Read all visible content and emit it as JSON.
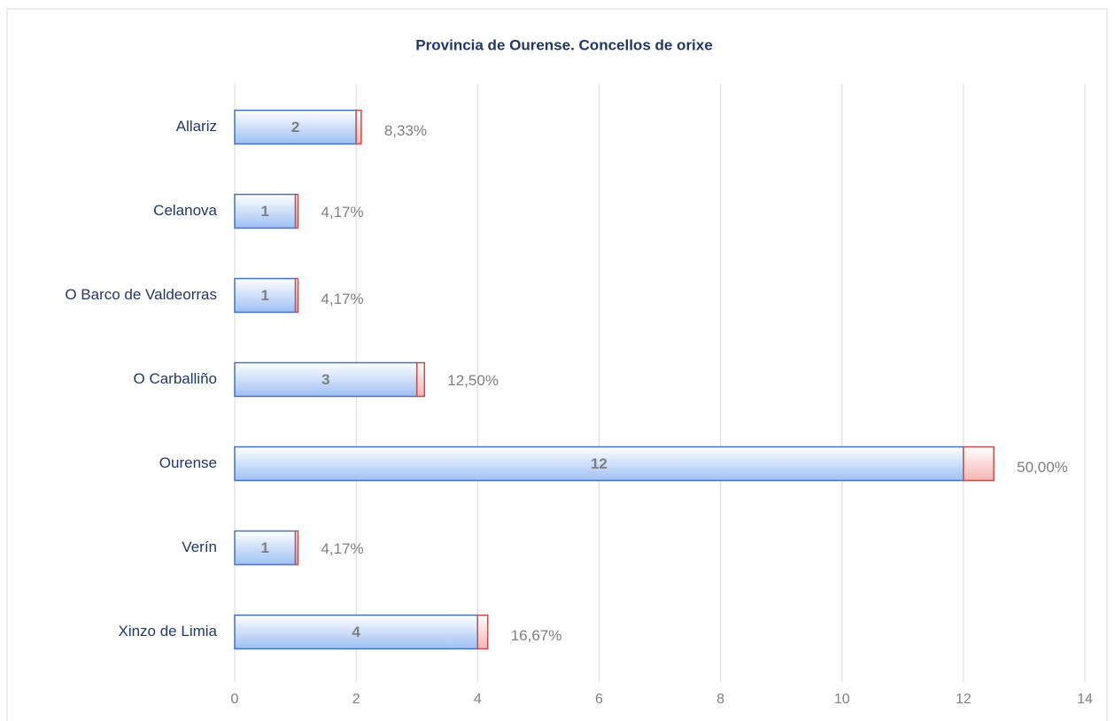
{
  "chart_data": {
    "type": "bar",
    "orientation": "horizontal",
    "stacked": true,
    "title": "Provincia de Ourense. Concellos de orixe",
    "categories": [
      "Allariz",
      "Celanova",
      "O Barco de Valdeorras",
      "O Carballiño",
      "Ourense",
      "Verín",
      "Xinzo de Limia"
    ],
    "series": [
      {
        "color": "#9ec0f4",
        "values": [
          2,
          1,
          1,
          3,
          12,
          1,
          4
        ]
      },
      {
        "color": "#f6b3b3",
        "values": [
          0.0833,
          0.0417,
          0.0417,
          0.125,
          0.5,
          0.0417,
          0.1667
        ],
        "value_labels": [
          "8,33%",
          "4,17%",
          "4,17%",
          "12,50%",
          "50,00%",
          "4,17%",
          "16,67%"
        ]
      }
    ],
    "xlim": [
      0,
      14
    ],
    "xticks": [
      0,
      2,
      4,
      6,
      8,
      10,
      12,
      14
    ],
    "grid": true
  }
}
